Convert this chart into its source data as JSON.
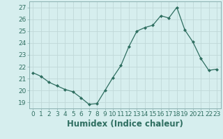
{
  "x": [
    0,
    1,
    2,
    3,
    4,
    5,
    6,
    7,
    8,
    9,
    10,
    11,
    12,
    13,
    14,
    15,
    16,
    17,
    18,
    19,
    20,
    21,
    22,
    23
  ],
  "y": [
    21.5,
    21.2,
    20.7,
    20.4,
    20.1,
    19.9,
    19.4,
    18.85,
    18.9,
    20.0,
    21.1,
    22.1,
    23.7,
    25.0,
    25.3,
    25.5,
    26.3,
    26.1,
    27.0,
    25.1,
    24.1,
    22.7,
    21.7,
    21.8
  ],
  "xlabel": "Humidex (Indice chaleur)",
  "ylim": [
    18.5,
    27.5
  ],
  "xlim": [
    -0.5,
    23.5
  ],
  "yticks": [
    19,
    20,
    21,
    22,
    23,
    24,
    25,
    26,
    27
  ],
  "xticks": [
    0,
    1,
    2,
    3,
    4,
    5,
    6,
    7,
    8,
    9,
    10,
    11,
    12,
    13,
    14,
    15,
    16,
    17,
    18,
    19,
    20,
    21,
    22,
    23
  ],
  "line_color": "#2e6e60",
  "marker_color": "#2e6e60",
  "bg_color": "#d6eeee",
  "grid_color": "#c0d8d8",
  "tick_label_fontsize": 6.5,
  "xlabel_fontsize": 8.5
}
